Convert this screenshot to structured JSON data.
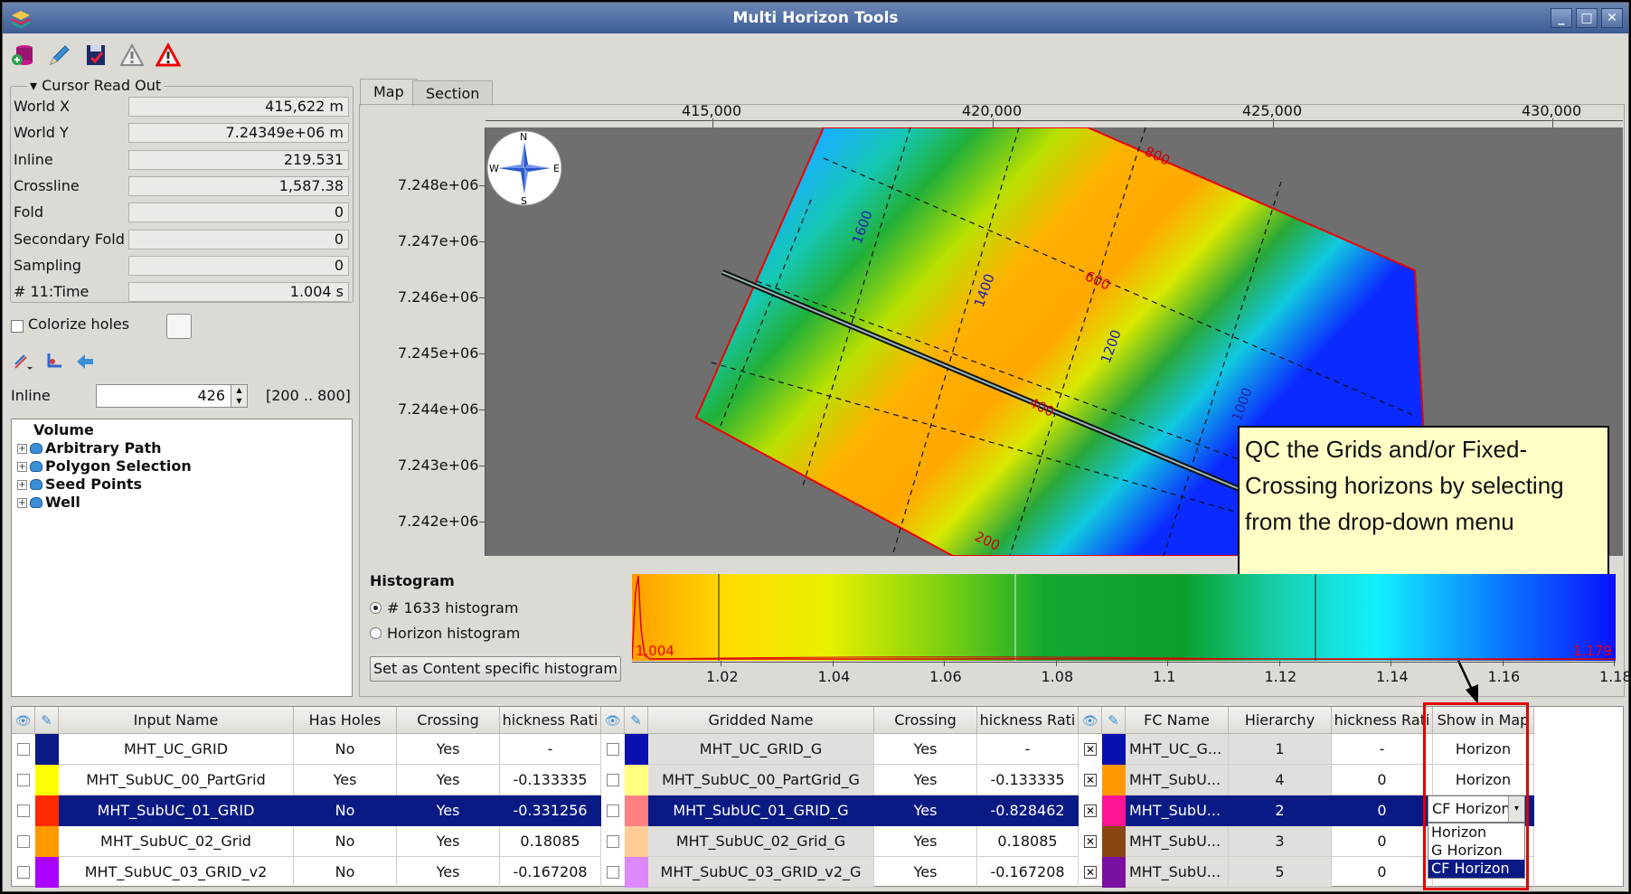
{
  "window": {
    "title": "Multi Horizon Tools"
  },
  "readout": {
    "title": "Cursor Read Out",
    "rows": [
      {
        "label": "World X",
        "value": "415,622 m"
      },
      {
        "label": "World Y",
        "value": "7.24349e+06 m"
      },
      {
        "label": "Inline",
        "value": "219.531"
      },
      {
        "label": "Crossline",
        "value": "1,587.38"
      },
      {
        "label": "Fold",
        "value": "0"
      },
      {
        "label": "Secondary Fold",
        "value": "0"
      },
      {
        "label": "Sampling",
        "value": "0"
      },
      {
        "label": "# 11:Time",
        "value": "1.004 s"
      }
    ]
  },
  "colorize": {
    "label": "Colorize holes"
  },
  "inline": {
    "label": "Inline",
    "value": "426",
    "range": "[200 .. 800]"
  },
  "tree": {
    "items": [
      "Volume",
      "Arbitrary Path",
      "Polygon Selection",
      "Seed Points",
      "Well"
    ]
  },
  "tabs": [
    "Map",
    "Section"
  ],
  "map": {
    "xticks": [
      "415,000",
      "420,000",
      "425,000",
      "430,000"
    ],
    "yticks": [
      "7.248e+06",
      "7.247e+06",
      "7.246e+06",
      "7.245e+06",
      "7.244e+06",
      "7.243e+06",
      "7.242e+06"
    ],
    "compass": {
      "n": "N",
      "s": "S",
      "e": "E",
      "w": "W"
    },
    "grid_labels": [
      "800",
      "600",
      "400",
      "200",
      "1600",
      "1400",
      "1200",
      "1000"
    ]
  },
  "callout": {
    "text": "QC the Grids and/or Fixed-Crossing horizons by selecting from the drop-down menu"
  },
  "histogram": {
    "title": "Histogram",
    "option1": "# 1633 histogram",
    "option2": "Horizon histogram",
    "button": "Set as Content specific histogram",
    "min_label": "1,004",
    "max_label": "1,179",
    "xticks": [
      "1.02",
      "1.04",
      "1.06",
      "1.08",
      "1.1",
      "1.12",
      "1.14",
      "1.16",
      "1.18"
    ]
  },
  "table": {
    "headers": [
      "Input Name",
      "Has Holes",
      "Crossing",
      "hickness Rati",
      "Gridded Name",
      "Crossing",
      "hickness Rati",
      "FC Name",
      "Hierarchy",
      "hickness Rati",
      "Show in Map"
    ],
    "rows": [
      {
        "color": "#0a1a85",
        "input": "MHT_UC_GRID",
        "holes": "No",
        "crossing": "Yes",
        "ratio": "-",
        "gcolor": "#0a10b0",
        "gridded": "MHT_UC_GRID_G",
        "gcrossing": "Yes",
        "gratio": "-",
        "fcolor": "#0a10b0",
        "fc": "MHT_UC_G...",
        "hier": "1",
        "fratio": "-",
        "show": "Horizon"
      },
      {
        "color": "#ffff00",
        "input": "MHT_SubUC_00_PartGrid",
        "holes": "Yes",
        "crossing": "Yes",
        "ratio": "-0.133335",
        "gcolor": "#ffff80",
        "gridded": "MHT_SubUC_00_PartGrid_G",
        "gcrossing": "Yes",
        "gratio": "-0.133335",
        "fcolor": "#ff9900",
        "fc": "MHT_SubU...",
        "hier": "4",
        "fratio": "0",
        "show": "Horizon"
      },
      {
        "color": "#ff2a00",
        "input": "MHT_SubUC_01_GRID",
        "holes": "No",
        "crossing": "Yes",
        "ratio": "-0.331256",
        "gcolor": "#ff8080",
        "gridded": "MHT_SubUC_01_GRID_G",
        "gcrossing": "Yes",
        "gratio": "-0.828462",
        "fcolor": "#ff1493",
        "fc": "MHT_SubU...",
        "hier": "2",
        "fratio": "0",
        "show": "CF Horizon"
      },
      {
        "color": "#ff9900",
        "input": "MHT_SubUC_02_Grid",
        "holes": "No",
        "crossing": "Yes",
        "ratio": "0.18085",
        "gcolor": "#ffcc99",
        "gridded": "MHT_SubUC_02_Grid_G",
        "gcrossing": "Yes",
        "gratio": "0.18085",
        "fcolor": "#8b4513",
        "fc": "MHT_SubU...",
        "hier": "3",
        "fratio": "0",
        "show": ""
      },
      {
        "color": "#aa00ff",
        "input": "MHT_SubUC_03_GRID_v2",
        "holes": "No",
        "crossing": "Yes",
        "ratio": "-0.167208",
        "gcolor": "#dd88ff",
        "gridded": "MHT_SubUC_03_GRID_v2_G",
        "gcrossing": "Yes",
        "gratio": "-0.167208",
        "fcolor": "#7a10a0",
        "fc": "MHT_SubU...",
        "hier": "5",
        "fratio": "0",
        "show": ""
      }
    ],
    "dropdown": [
      "Horizon",
      "G Horizon",
      "CF Horizon"
    ]
  }
}
